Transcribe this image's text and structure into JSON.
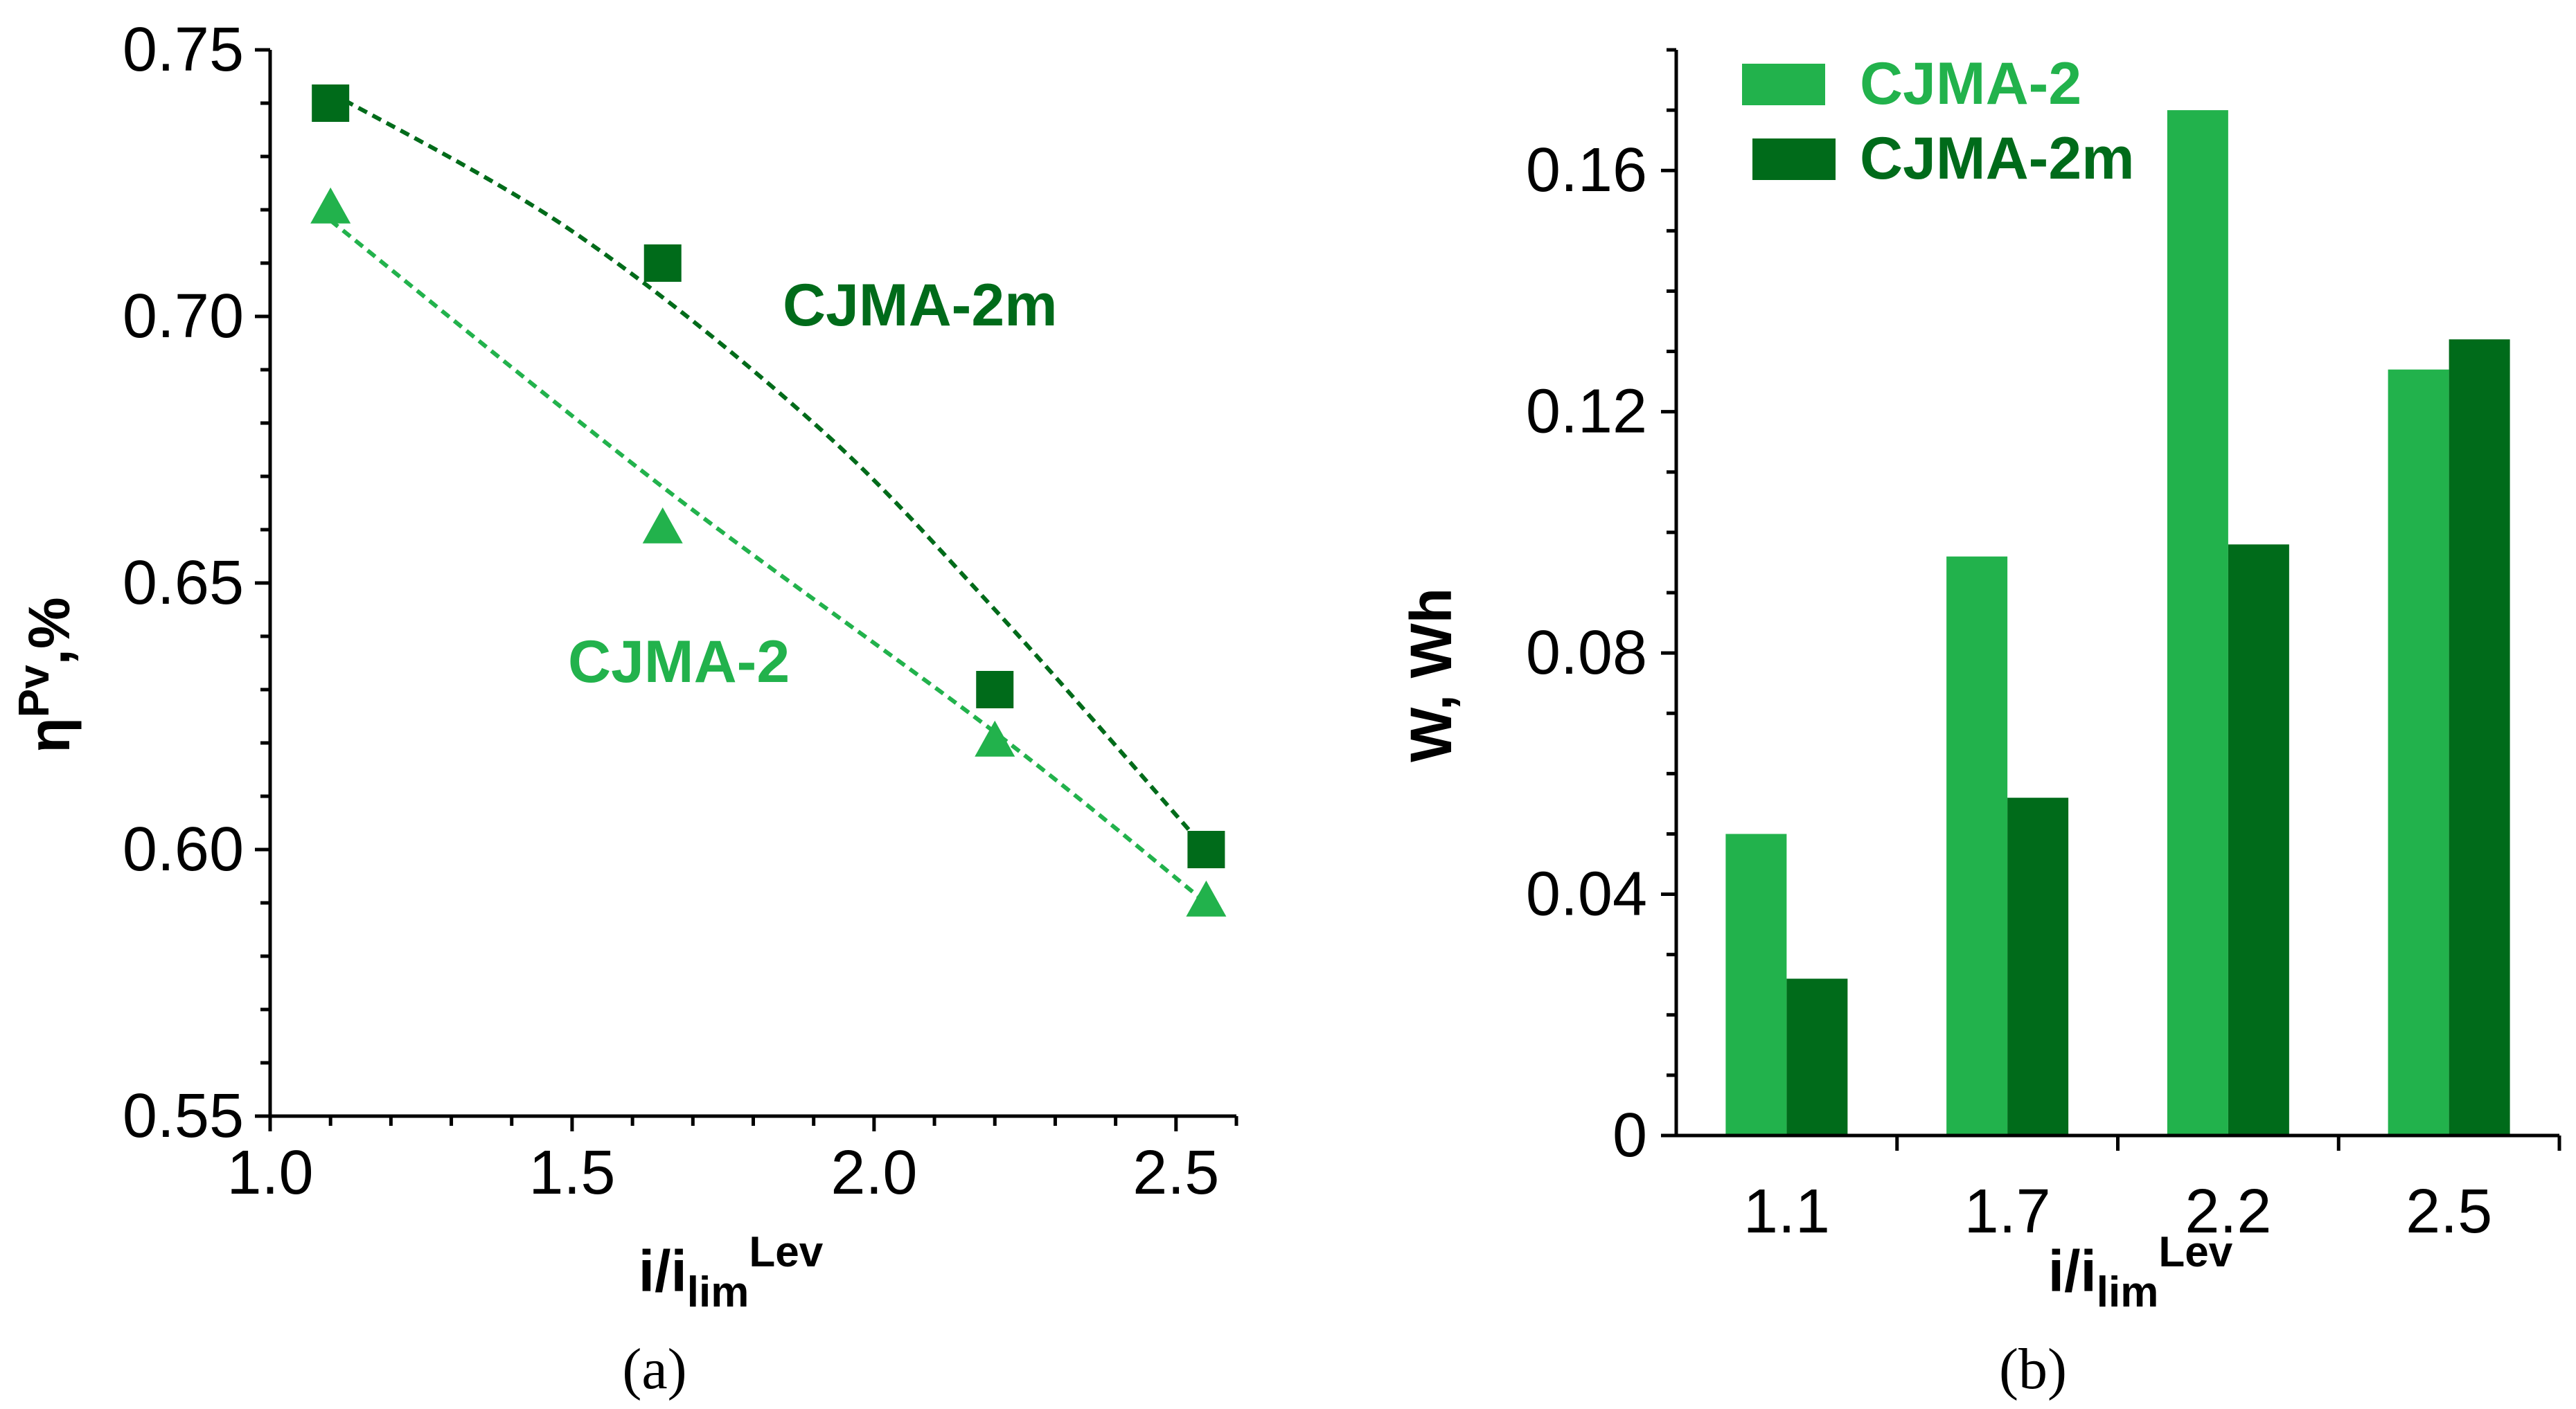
{
  "chart_data": [
    {
      "panel": "a",
      "type": "scatter",
      "caption": "(a)",
      "ylabel": "ηPv,%",
      "ylabel_main": "η",
      "ylabel_sup": "Pv",
      "ylabel_tail": ",%",
      "xlabel": "i/ilimLev",
      "xlabel_main": "i/i",
      "xlabel_sub": "lim",
      "xlabel_sup": "Lev",
      "xlim": [
        1.0,
        2.6
      ],
      "ylim": [
        0.55,
        0.75
      ],
      "x_ticks": [
        1.0,
        1.5,
        2.0,
        2.5
      ],
      "x_tick_labels": [
        "1.0",
        "1.5",
        "2.0",
        "2.5"
      ],
      "y_ticks": [
        0.55,
        0.6,
        0.65,
        0.7,
        0.75
      ],
      "y_tick_labels": [
        "0.55",
        "0.60",
        "0.65",
        "0.70",
        "0.75"
      ],
      "series": [
        {
          "name": "CJMA-2m",
          "label": "CJMA-2m",
          "marker": "square",
          "color": "#006b1a",
          "x": [
            1.1,
            1.65,
            2.2,
            2.55
          ],
          "y": [
            0.74,
            0.71,
            0.63,
            0.6
          ],
          "trend": [
            [
              1.1,
              0.742
            ],
            [
              1.5,
              0.716
            ],
            [
              1.9,
              0.68
            ],
            [
              2.2,
              0.645
            ],
            [
              2.55,
              0.6
            ]
          ]
        },
        {
          "name": "CJMA-2",
          "label": "CJMA-2",
          "marker": "triangle",
          "color": "#22b24c",
          "x": [
            1.1,
            1.65,
            2.2,
            2.55
          ],
          "y": [
            0.72,
            0.66,
            0.62,
            0.59
          ],
          "trend": [
            [
              1.1,
              0.718
            ],
            [
              1.65,
              0.668
            ],
            [
              2.2,
              0.622
            ],
            [
              2.55,
              0.59
            ]
          ]
        }
      ]
    },
    {
      "panel": "b",
      "type": "bar",
      "caption": "(b)",
      "ylabel": "W, Wh",
      "xlabel": "i/ilimLev",
      "xlabel_main": "i/i",
      "xlabel_sub": "lim",
      "xlabel_sup": "Lev",
      "ylim": [
        0,
        0.18
      ],
      "y_ticks": [
        0,
        0.04,
        0.08,
        0.12,
        0.16
      ],
      "y_tick_labels": [
        "0",
        "0.04",
        "0.08",
        "0.12",
        "0.16"
      ],
      "categories": [
        "1.1",
        "1.7",
        "2.2",
        "2.5"
      ],
      "legend_position": "top-left",
      "series": [
        {
          "name": "CJMA-2",
          "color": "#22b24c",
          "values": [
            0.05,
            0.096,
            0.17,
            0.127
          ]
        },
        {
          "name": "CJMA-2m",
          "color": "#006b1a",
          "values": [
            0.026,
            0.056,
            0.098,
            0.132
          ]
        }
      ]
    }
  ]
}
